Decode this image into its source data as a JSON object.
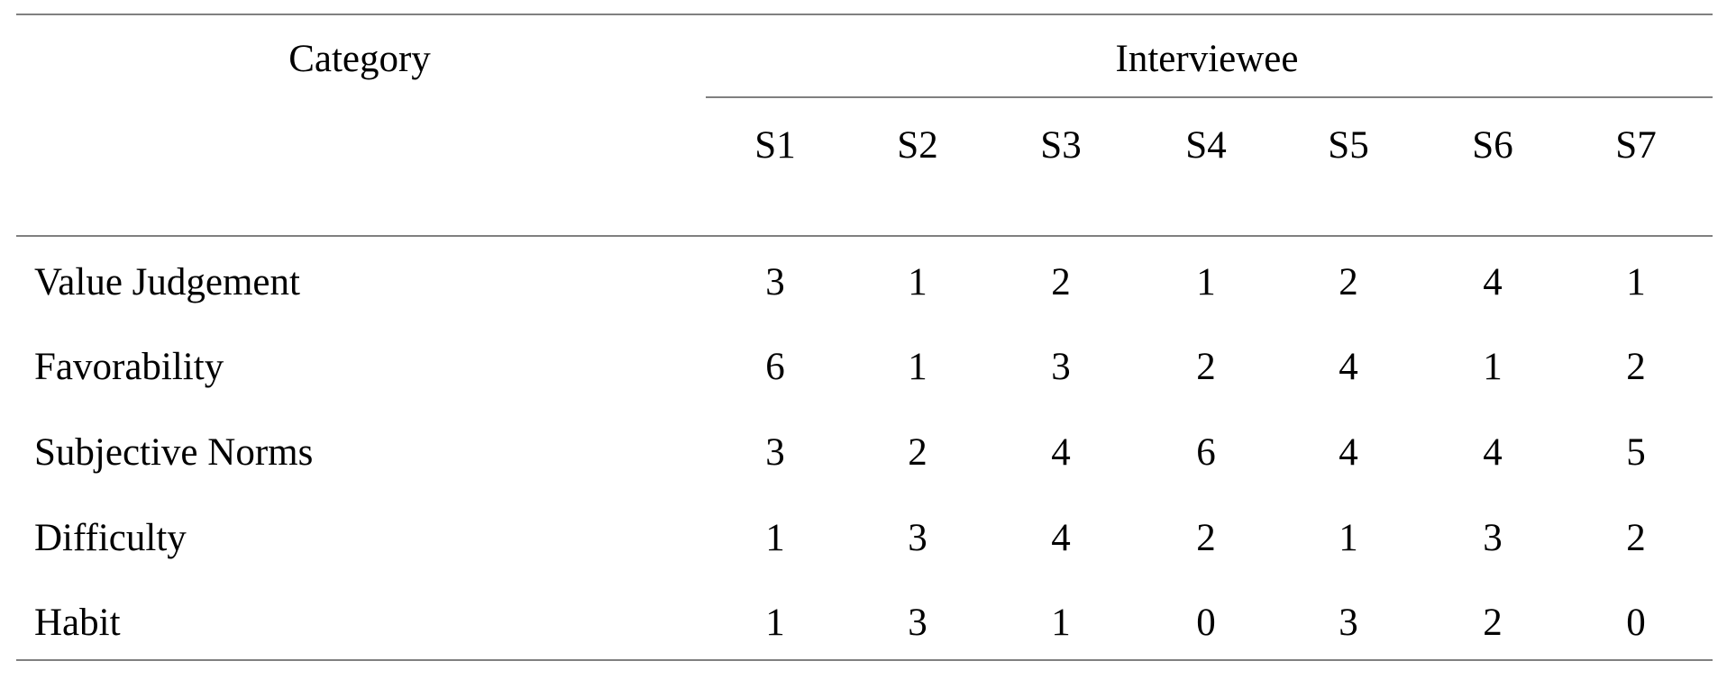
{
  "table": {
    "header": {
      "category_label": "Category",
      "group_label": "Interviewee",
      "columns": [
        "S1",
        "S2",
        "S3",
        "S4",
        "S5",
        "S6",
        "S7"
      ]
    },
    "rows": [
      {
        "category": "Value Judgement",
        "values": [
          "3",
          "1",
          "2",
          "1",
          "2",
          "4",
          "1"
        ]
      },
      {
        "category": "Favorability",
        "values": [
          "6",
          "1",
          "3",
          "2",
          "4",
          "1",
          "2"
        ]
      },
      {
        "category": "Subjective Norms",
        "values": [
          "3",
          "2",
          "4",
          "6",
          "4",
          "4",
          "5"
        ]
      },
      {
        "category": "Difficulty",
        "values": [
          "1",
          "3",
          "4",
          "2",
          "1",
          "3",
          "2"
        ]
      },
      {
        "category": "Habit",
        "values": [
          "1",
          "3",
          "1",
          "0",
          "3",
          "2",
          "0"
        ]
      }
    ]
  }
}
